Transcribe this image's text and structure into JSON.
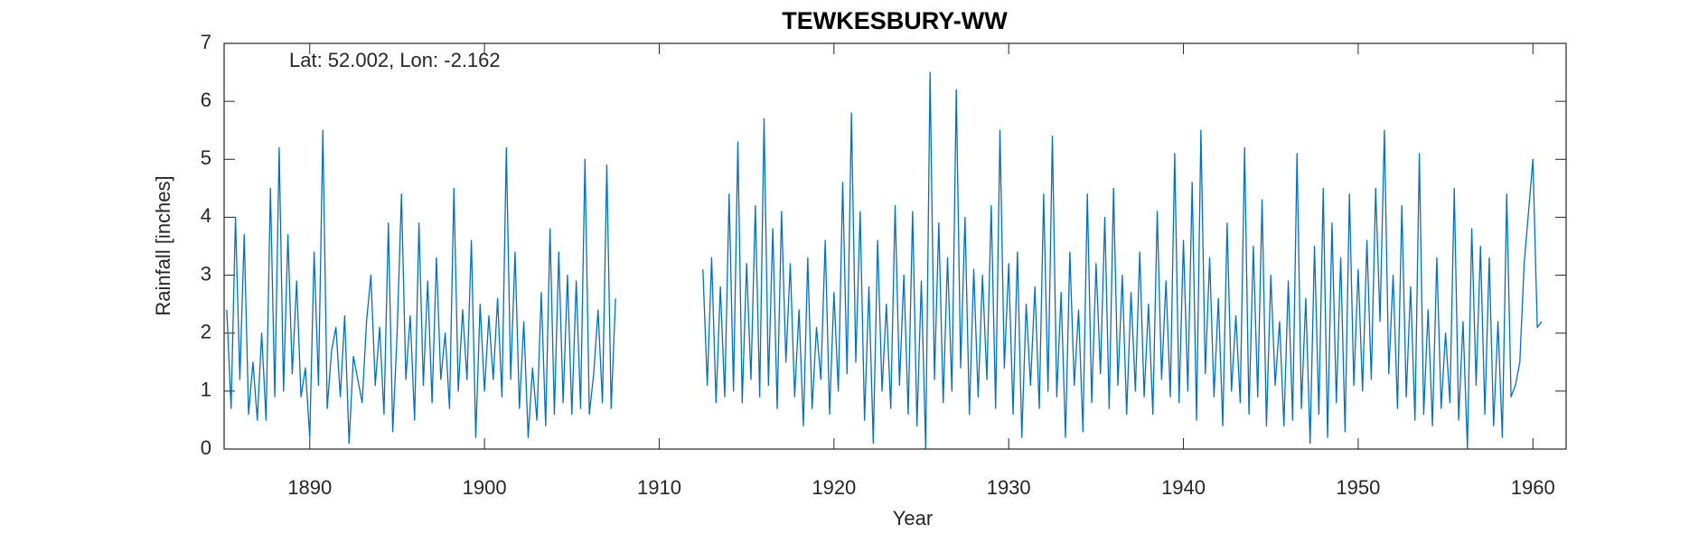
{
  "chart_data": {
    "type": "line",
    "title": "TEWKESBURY-WW",
    "annotation": "Lat: 52.002, Lon: -2.162",
    "x_label": "Year",
    "y_label": "Rainfall [inches]",
    "xlim": [
      1885.1,
      1961.9
    ],
    "ylim": [
      0,
      7
    ],
    "xticks": [
      1890,
      1900,
      1910,
      1920,
      1930,
      1940,
      1950,
      1960
    ],
    "yticks": [
      0,
      1,
      2,
      3,
      4,
      5,
      6,
      7
    ],
    "grid": false,
    "series": [
      {
        "name": "Rainfall",
        "color": "#0072bd",
        "x": [
          1885.25,
          1885.5,
          1885.75,
          1886,
          1886.25,
          1886.5,
          1886.75,
          1887,
          1887.25,
          1887.5,
          1887.75,
          1888,
          1888.25,
          1888.5,
          1888.75,
          1889,
          1889.25,
          1889.5,
          1889.75,
          1890,
          1890.25,
          1890.5,
          1890.75,
          1891,
          1891.25,
          1891.5,
          1891.75,
          1892,
          1892.25,
          1892.5,
          1892.75,
          1893,
          1893.25,
          1893.5,
          1893.75,
          1894,
          1894.25,
          1894.5,
          1894.75,
          1895,
          1895.25,
          1895.5,
          1895.75,
          1896,
          1896.25,
          1896.5,
          1896.75,
          1897,
          1897.25,
          1897.5,
          1897.75,
          1898,
          1898.25,
          1898.5,
          1898.75,
          1899,
          1899.25,
          1899.5,
          1899.75,
          1900,
          1900.25,
          1900.5,
          1900.75,
          1901,
          1901.25,
          1901.5,
          1901.75,
          1902,
          1902.25,
          1902.5,
          1902.75,
          1903,
          1903.25,
          1903.5,
          1903.75,
          1904,
          1904.25,
          1904.5,
          1904.75,
          1905,
          1905.25,
          1905.5,
          1905.75,
          1906,
          1906.25,
          1906.5,
          1906.75,
          1907,
          1907.25,
          1907.5,
          1910,
          1912.5,
          1912.75,
          1913,
          1913.25,
          1913.5,
          1913.75,
          1914,
          1914.25,
          1914.5,
          1914.75,
          1915,
          1915.25,
          1915.5,
          1915.75,
          1916,
          1916.25,
          1916.5,
          1916.75,
          1917,
          1917.25,
          1917.5,
          1917.75,
          1918,
          1918.25,
          1918.5,
          1918.75,
          1919,
          1919.25,
          1919.5,
          1919.75,
          1920,
          1920.25,
          1920.5,
          1920.75,
          1921,
          1921.25,
          1921.5,
          1921.75,
          1922,
          1922.25,
          1922.5,
          1922.75,
          1923,
          1923.25,
          1923.5,
          1923.75,
          1924,
          1924.25,
          1924.5,
          1924.75,
          1925,
          1925.25,
          1925.5,
          1925.75,
          1926,
          1926.25,
          1926.5,
          1926.75,
          1927,
          1927.25,
          1927.5,
          1927.75,
          1928,
          1928.25,
          1928.5,
          1928.75,
          1929,
          1929.25,
          1929.5,
          1929.75,
          1930,
          1930.25,
          1930.5,
          1930.75,
          1931,
          1931.25,
          1931.5,
          1931.75,
          1932,
          1932.25,
          1932.5,
          1932.75,
          1933,
          1933.25,
          1933.5,
          1933.75,
          1934,
          1934.25,
          1934.5,
          1934.75,
          1935,
          1935.25,
          1935.5,
          1935.75,
          1936,
          1936.25,
          1936.5,
          1936.75,
          1937,
          1937.25,
          1937.5,
          1937.75,
          1938,
          1938.25,
          1938.5,
          1938.75,
          1939,
          1939.25,
          1939.5,
          1939.75,
          1940,
          1940.25,
          1940.5,
          1940.75,
          1941,
          1941.25,
          1941.5,
          1941.75,
          1942,
          1942.25,
          1942.5,
          1942.75,
          1943,
          1943.25,
          1943.5,
          1943.75,
          1944,
          1944.25,
          1944.5,
          1944.75,
          1945,
          1945.25,
          1945.5,
          1945.75,
          1946,
          1946.25,
          1946.5,
          1946.75,
          1947,
          1947.25,
          1947.5,
          1947.75,
          1948,
          1948.25,
          1948.5,
          1948.75,
          1949,
          1949.25,
          1949.5,
          1949.75,
          1950,
          1950.25,
          1950.5,
          1950.75,
          1951,
          1951.25,
          1951.5,
          1951.75,
          1952,
          1952.25,
          1952.5,
          1952.75,
          1953,
          1953.25,
          1953.5,
          1953.75,
          1954,
          1954.25,
          1954.5,
          1954.75,
          1955,
          1955.25,
          1955.5,
          1955.75,
          1956,
          1956.25,
          1956.5,
          1956.75,
          1957,
          1957.25,
          1957.5,
          1957.75,
          1958,
          1958.25,
          1958.5,
          1958.75,
          1959,
          1959.25,
          1959.5,
          1959.75,
          1960,
          1960.25,
          1960.5
        ],
        "values": [
          2.4,
          0.7,
          4.0,
          1.2,
          3.7,
          0.6,
          1.5,
          0.5,
          2.0,
          0.5,
          4.5,
          0.9,
          5.2,
          1.0,
          3.7,
          1.3,
          2.9,
          0.9,
          1.4,
          0.2,
          3.4,
          1.1,
          5.5,
          0.7,
          1.7,
          2.1,
          0.9,
          2.3,
          0.1,
          1.6,
          1.2,
          0.8,
          2.2,
          3.0,
          1.1,
          2.1,
          0.6,
          3.9,
          0.3,
          2.0,
          4.4,
          1.2,
          2.3,
          0.5,
          3.9,
          1.1,
          2.9,
          0.8,
          3.3,
          1.2,
          2.0,
          0.7,
          4.5,
          1.0,
          2.4,
          1.2,
          3.6,
          0.2,
          2.5,
          1.0,
          2.3,
          1.2,
          2.6,
          0.9,
          5.2,
          1.2,
          3.4,
          0.7,
          2.2,
          0.2,
          1.4,
          0.5,
          2.7,
          0.4,
          3.8,
          0.6,
          3.4,
          0.8,
          3.0,
          0.6,
          2.9,
          0.7,
          5.0,
          0.6,
          1.3,
          2.4,
          0.8,
          4.9,
          0.7,
          2.6,
          null,
          3.1,
          1.1,
          3.3,
          0.8,
          2.8,
          0.9,
          4.4,
          1.0,
          5.3,
          0.8,
          3.2,
          1.2,
          4.2,
          0.9,
          5.7,
          1.1,
          3.8,
          0.7,
          4.1,
          1.5,
          3.2,
          0.9,
          2.4,
          0.4,
          3.3,
          0.7,
          2.1,
          1.2,
          3.6,
          0.6,
          2.7,
          1.0,
          4.6,
          1.3,
          5.8,
          1.5,
          4.1,
          0.5,
          2.8,
          0.1,
          3.6,
          1.0,
          2.5,
          0.7,
          4.2,
          1.1,
          3.0,
          0.6,
          4.1,
          0.4,
          2.9,
          0.0,
          6.5,
          1.2,
          3.9,
          0.8,
          3.3,
          1.0,
          6.2,
          1.4,
          4.0,
          0.6,
          3.1,
          0.9,
          3.0,
          1.2,
          4.2,
          0.7,
          5.5,
          1.4,
          3.2,
          0.6,
          3.4,
          0.2,
          2.5,
          1.1,
          2.8,
          0.7,
          4.4,
          1.0,
          5.4,
          0.9,
          2.7,
          0.2,
          3.4,
          1.1,
          2.4,
          0.3,
          4.4,
          0.8,
          3.2,
          1.3,
          4.0,
          0.7,
          4.5,
          1.1,
          3.0,
          0.6,
          2.7,
          1.0,
          3.4,
          0.9,
          2.5,
          0.6,
          4.1,
          1.2,
          2.9,
          0.9,
          5.1,
          0.8,
          3.6,
          1.0,
          4.6,
          0.5,
          5.5,
          1.3,
          3.3,
          0.9,
          2.6,
          0.4,
          3.9,
          1.0,
          2.3,
          0.8,
          5.2,
          0.6,
          3.5,
          0.9,
          4.3,
          0.4,
          3.0,
          1.1,
          2.2,
          0.4,
          2.9,
          0.5,
          5.1,
          0.7,
          2.6,
          0.1,
          3.5,
          0.6,
          4.5,
          0.2,
          3.9,
          0.8,
          3.3,
          0.3,
          4.4,
          1.1,
          3.1,
          1.0,
          3.6,
          1.2,
          4.5,
          2.2,
          5.5,
          1.3,
          3.0,
          0.7,
          4.2,
          0.9,
          2.8,
          0.5,
          5.1,
          0.6,
          2.4,
          0.4,
          3.3,
          0.7,
          2.0,
          0.8,
          4.5,
          0.5,
          2.2,
          0.0,
          3.8,
          1.1,
          3.5,
          0.6,
          3.3,
          0.4,
          2.2,
          0.2,
          4.4,
          0.9,
          1.1,
          1.5,
          3.2,
          4.1,
          5.0,
          2.1,
          2.2
        ]
      }
    ]
  }
}
